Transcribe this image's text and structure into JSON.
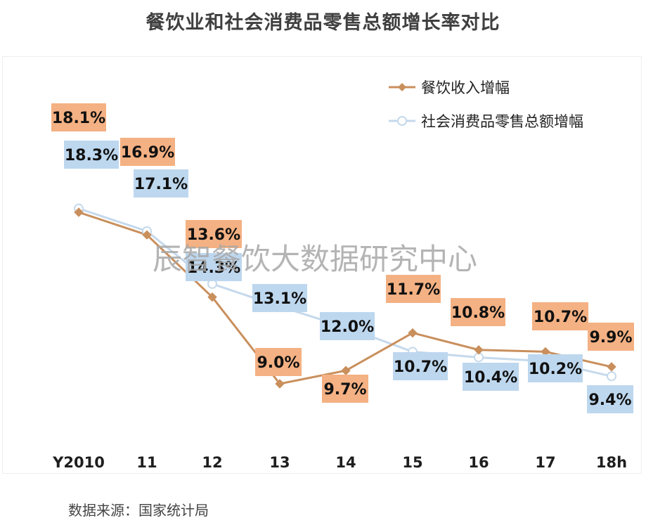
{
  "title": "餐饮业和社会消费品零售总额增长率对比",
  "source": "数据来源：国家统计局",
  "watermark": "辰智餐饮大数据研究中心",
  "colors": {
    "catering_line": "#c98f5c",
    "catering_label_bg": "#f4b183",
    "retail_line": "#c5d9ec",
    "retail_label_bg": "#bdd7ee"
  },
  "chart_data": {
    "type": "line",
    "title": "餐饮业和社会消费品零售总额增长率对比",
    "xlabel": "",
    "ylabel": "",
    "categories": [
      "Y2010",
      "11",
      "12",
      "13",
      "14",
      "15",
      "16",
      "17",
      "18h"
    ],
    "series": [
      {
        "name": "餐饮收入增幅",
        "values": [
          18.1,
          16.9,
          13.6,
          9.0,
          9.7,
          11.7,
          10.8,
          10.7,
          9.9
        ],
        "labels": [
          "18.1%",
          "16.9%",
          "13.6%",
          "9.0%",
          "9.7%",
          "11.7%",
          "10.8%",
          "10.7%",
          "9.9%"
        ],
        "marker": "diamond"
      },
      {
        "name": "社会消费品零售总额增幅",
        "values": [
          18.3,
          17.1,
          14.3,
          13.1,
          12.0,
          10.7,
          10.4,
          10.2,
          9.4
        ],
        "labels": [
          "18.3%",
          "17.1%",
          "14.3%",
          "13.1%",
          "12.0%",
          "10.7%",
          "10.4%",
          "10.2%",
          "9.4%"
        ],
        "marker": "circle"
      }
    ],
    "grid": false,
    "y_axis_visible": false,
    "legend_position": "top-right"
  }
}
